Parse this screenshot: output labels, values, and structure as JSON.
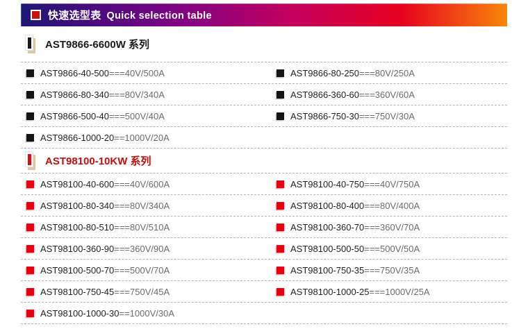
{
  "header": {
    "title_zh": "快速选型表",
    "title_en": "Quick selection table",
    "icon": "red-square-icon",
    "gradient": [
      "#1e1876",
      "#55087f",
      "#8a0280",
      "#c4005c",
      "#e6001f",
      "#f8870a"
    ]
  },
  "sections": [
    {
      "title": "AST9866-6600W 系列",
      "title_color": "#1a1a1a",
      "icon_color": "#1a1a1a",
      "marker_color": "#141414",
      "marker_edge": "#c8c8c8",
      "items": [
        {
          "model": "AST9866-40-500",
          "eq": "===",
          "spec": "40V/500A"
        },
        {
          "model": "AST9866-80-250",
          "eq": "===",
          "spec": "80V/250A"
        },
        {
          "model": "AST9866-80-340",
          "eq": "===",
          "spec": "80V/340A"
        },
        {
          "model": "AST9866-360-60",
          "eq": "===",
          "spec": "360V/60A"
        },
        {
          "model": "AST9866-500-40",
          "eq": "===",
          "spec": "500V/40A"
        },
        {
          "model": "AST9866-750-30",
          "eq": "===",
          "spec": "750V/30A"
        },
        {
          "model": "AST9866-1000-20",
          "eq": "==",
          "spec": "1000V/20A"
        }
      ]
    },
    {
      "title": "AST98100-10KW 系列",
      "title_color": "#c30f0f",
      "icon_color": "#c4161c",
      "marker_color": "#e60012",
      "marker_edge": "#f6b0b0",
      "items": [
        {
          "model": "AST98100-40-600",
          "eq": "===",
          "spec": "40V/600A"
        },
        {
          "model": "AST98100-40-750",
          "eq": "===",
          "spec": "40V/750A"
        },
        {
          "model": "AST98100-80-340",
          "eq": "===",
          "spec": "80V/340A"
        },
        {
          "model": "AST98100-80-400",
          "eq": "===",
          "spec": "80V/400A"
        },
        {
          "model": "AST98100-80-510",
          "eq": "===",
          "spec": "80V/510A"
        },
        {
          "model": "AST98100-360-70",
          "eq": "===",
          "spec": "360V/70A"
        },
        {
          "model": "AST98100-360-90",
          "eq": "===",
          "spec": "360V/90A"
        },
        {
          "model": "AST98100-500-50",
          "eq": "===",
          "spec": "500V/50A"
        },
        {
          "model": "AST98100-500-70",
          "eq": "===",
          "spec": "500V/70A"
        },
        {
          "model": "AST98100-750-35",
          "eq": "===",
          "spec": "750V/35A"
        },
        {
          "model": "AST98100-750-45",
          "eq": "===",
          "spec": "750V/45A"
        },
        {
          "model": "AST98100-1000-25",
          "eq": "===",
          "spec": "1000V/25A"
        },
        {
          "model": "AST98100-1000-30",
          "eq": "==",
          "spec": "1000V/30A"
        }
      ]
    }
  ]
}
